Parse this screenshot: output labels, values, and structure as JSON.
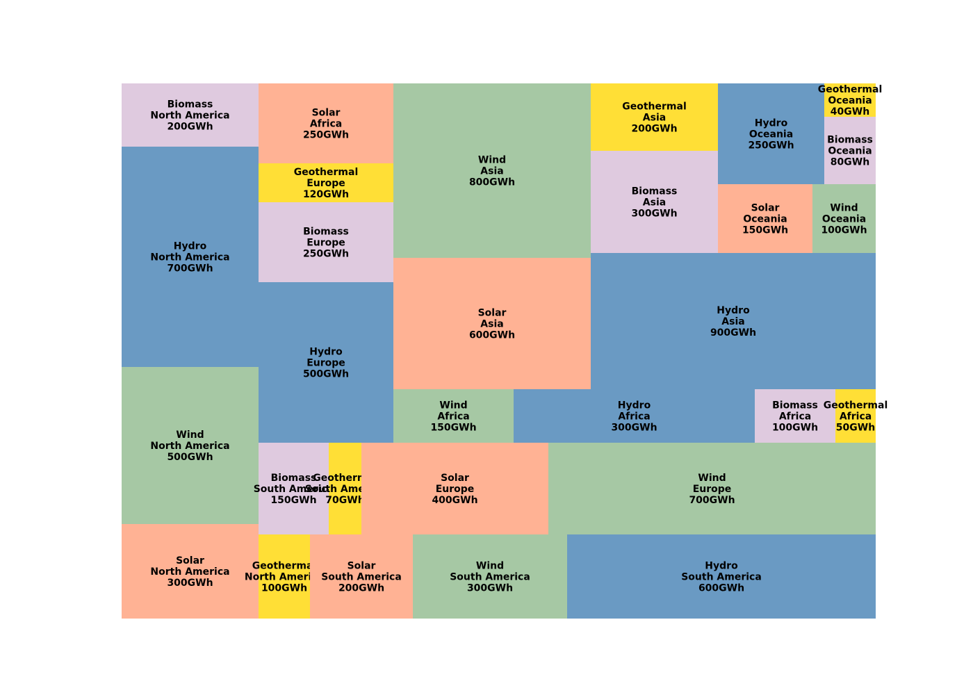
{
  "chart_data": {
    "type": "treemap",
    "title": "",
    "unit": "GWh",
    "colors": {
      "Wind": "#a6c8a4",
      "Solar": "#ffb294",
      "Hydro": "#6a9ac3",
      "Biomass": "#dfcadf",
      "Geothermal": "#ffdf36"
    },
    "items": [
      {
        "source": "Biomass",
        "region": "North America",
        "value": 200,
        "value_label": "200GWh"
      },
      {
        "source": "Hydro",
        "region": "North America",
        "value": 700,
        "value_label": "700GWh"
      },
      {
        "source": "Wind",
        "region": "North America",
        "value": 500,
        "value_label": "500GWh"
      },
      {
        "source": "Solar",
        "region": "North America",
        "value": 300,
        "value_label": "300GWh"
      },
      {
        "source": "Solar",
        "region": "Africa",
        "value": 250,
        "value_label": "250GWh"
      },
      {
        "source": "Geothermal",
        "region": "Europe",
        "value": 120,
        "value_label": "120GWh"
      },
      {
        "source": "Biomass",
        "region": "Europe",
        "value": 250,
        "value_label": "250GWh"
      },
      {
        "source": "Hydro",
        "region": "Europe",
        "value": 500,
        "value_label": "500GWh"
      },
      {
        "source": "Wind",
        "region": "Asia",
        "value": 800,
        "value_label": "800GWh"
      },
      {
        "source": "Solar",
        "region": "Asia",
        "value": 600,
        "value_label": "600GWh"
      },
      {
        "source": "Geothermal",
        "region": "Asia",
        "value": 200,
        "value_label": "200GWh"
      },
      {
        "source": "Biomass",
        "region": "Asia",
        "value": 300,
        "value_label": "300GWh"
      },
      {
        "source": "Hydro",
        "region": "Oceania",
        "value": 250,
        "value_label": "250GWh"
      },
      {
        "source": "Geothermal",
        "region": "Oceania",
        "value": 40,
        "value_label": "40GWh"
      },
      {
        "source": "Biomass",
        "region": "Oceania",
        "value": 80,
        "value_label": "80GWh"
      },
      {
        "source": "Solar",
        "region": "Oceania",
        "value": 150,
        "value_label": "150GWh"
      },
      {
        "source": "Wind",
        "region": "Oceania",
        "value": 100,
        "value_label": "100GWh"
      },
      {
        "source": "Hydro",
        "region": "Asia",
        "value": 900,
        "value_label": "900GWh"
      },
      {
        "source": "Wind",
        "region": "Africa",
        "value": 150,
        "value_label": "150GWh"
      },
      {
        "source": "Hydro",
        "region": "Africa",
        "value": 300,
        "value_label": "300GWh"
      },
      {
        "source": "Biomass",
        "region": "Africa",
        "value": 100,
        "value_label": "100GWh"
      },
      {
        "source": "Geothermal",
        "region": "Africa",
        "value": 50,
        "value_label": "50GWh"
      },
      {
        "source": "Biomass",
        "region": "South America",
        "value": 150,
        "value_label": "150GWh"
      },
      {
        "source": "Geothermal",
        "region": "South America",
        "value": 70,
        "value_label": "70GWh"
      },
      {
        "source": "Solar",
        "region": "Europe",
        "value": 400,
        "value_label": "400GWh"
      },
      {
        "source": "Wind",
        "region": "Europe",
        "value": 700,
        "value_label": "700GWh"
      },
      {
        "source": "Geothermal",
        "region": "North America",
        "value": 100,
        "value_label": "100GWh"
      },
      {
        "source": "Solar",
        "region": "South America",
        "value": 200,
        "value_label": "200GWh"
      },
      {
        "source": "Wind",
        "region": "South America",
        "value": 300,
        "value_label": "300GWh"
      },
      {
        "source": "Hydro",
        "region": "South America",
        "value": 600,
        "value_label": "600GWh"
      }
    ]
  }
}
